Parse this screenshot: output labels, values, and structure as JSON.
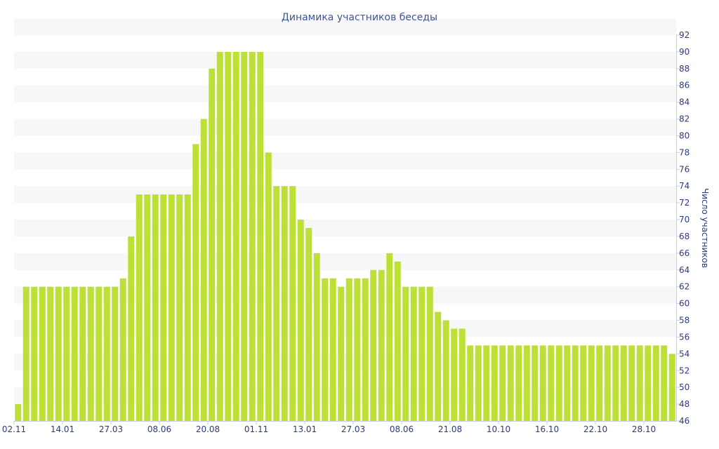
{
  "chart_data": {
    "type": "bar",
    "title": "Динамика участников беседы",
    "xlabel": "",
    "ylabel": "Число участников",
    "ylim": [
      46,
      92
    ],
    "yticks": [
      46,
      48,
      50,
      52,
      54,
      56,
      58,
      60,
      62,
      64,
      66,
      68,
      70,
      72,
      74,
      76,
      78,
      80,
      82,
      84,
      86,
      88,
      90,
      92
    ],
    "xtick_labels": [
      {
        "index": 0,
        "label": "02.11"
      },
      {
        "index": 6,
        "label": "14.01"
      },
      {
        "index": 12,
        "label": "27.03"
      },
      {
        "index": 18,
        "label": "08.06"
      },
      {
        "index": 24,
        "label": "20.08"
      },
      {
        "index": 30,
        "label": "01.11"
      },
      {
        "index": 36,
        "label": "13.01"
      },
      {
        "index": 42,
        "label": "27.03"
      },
      {
        "index": 48,
        "label": "08.06"
      },
      {
        "index": 54,
        "label": "21.08"
      },
      {
        "index": 60,
        "label": "10.10"
      },
      {
        "index": 66,
        "label": "16.10"
      },
      {
        "index": 72,
        "label": "22.10"
      },
      {
        "index": 78,
        "label": "28.10"
      }
    ],
    "values": [
      48,
      62,
      62,
      62,
      62,
      62,
      62,
      62,
      62,
      62,
      62,
      62,
      62,
      63,
      68,
      73,
      73,
      73,
      73,
      73,
      73,
      73,
      79,
      82,
      88,
      90,
      90,
      90,
      90,
      90,
      90,
      78,
      74,
      74,
      74,
      70,
      69,
      66,
      63,
      63,
      62,
      63,
      63,
      63,
      64,
      64,
      66,
      65,
      62,
      62,
      62,
      62,
      59,
      58,
      57,
      57,
      55,
      55,
      55,
      55,
      55,
      55,
      55,
      55,
      55,
      55,
      55,
      55,
      55,
      55,
      55,
      55,
      55,
      55,
      55,
      55,
      55,
      55,
      55,
      55,
      55,
      54
    ],
    "bar_color": "#bde036",
    "band_color": "#f7f7f7",
    "axis_color": "#c6cde6",
    "text_color": "#2e3a78",
    "grid": true,
    "legend": "none"
  }
}
